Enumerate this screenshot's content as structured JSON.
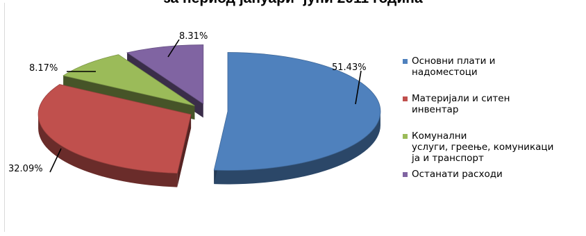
{
  "chart_data": {
    "type": "pie",
    "title": "за период јануари- јуни 2011 година",
    "slices": [
      {
        "name": "Основни плати и надоместоци",
        "value": 51.43,
        "label": "51.43%",
        "color": "#4f81bd",
        "legend_lines": [
          "Основни плати и",
          "надоместоци"
        ]
      },
      {
        "name": "Материјали и ситен инвентар",
        "value": 32.09,
        "label": "32.09%",
        "color": "#c0504d",
        "legend_lines": [
          "Материјали и ситен",
          "инвентар"
        ]
      },
      {
        "name": "Комунални услуги, греење, комуникација и транспорт",
        "value": 8.17,
        "label": "8.17%",
        "color": "#9bbb59",
        "legend_lines": [
          "Комунални",
          "услуги, греење, комуникаци",
          "ја и транспорт"
        ]
      },
      {
        "name": "Останати расходи",
        "value": 8.31,
        "label": "8.31%",
        "color": "#8064a2",
        "legend_lines": [
          "Останати расходи"
        ]
      }
    ],
    "legend_position": "right"
  }
}
